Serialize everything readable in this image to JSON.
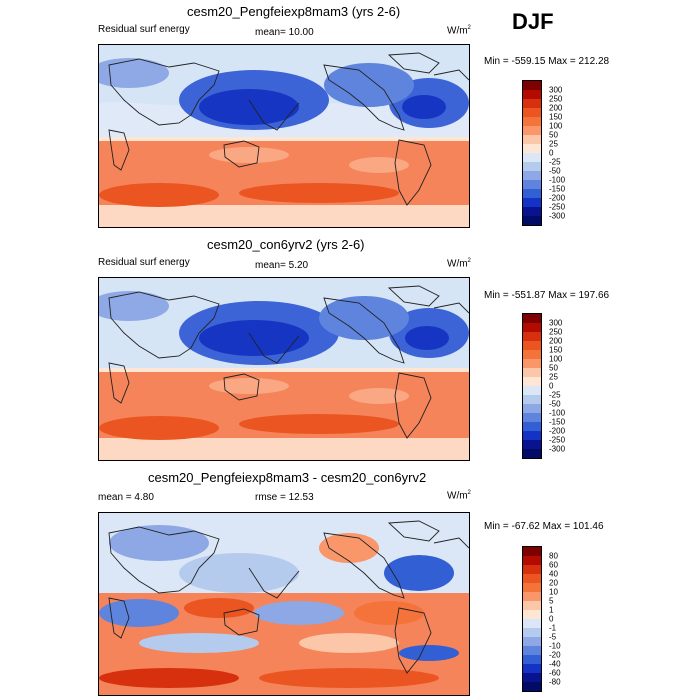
{
  "season": "DJF",
  "panels": [
    {
      "title": "cesm20_Pengfeiexp8mam3 (yrs 2-6)",
      "left_label": "Residual surf energy",
      "mid_label": "mean=  10.00",
      "units": "W/m",
      "units_sup": "2",
      "range": "Min = -559.15 Max = 212.28",
      "levels": [
        "300",
        "250",
        "200",
        "150",
        "100",
        "50",
        "25",
        "0",
        "-25",
        "-50",
        "-100",
        "-150",
        "-200",
        "-250",
        "-300"
      ],
      "colors": [
        "#7f0000",
        "#b40b00",
        "#d7300f",
        "#ea5522",
        "#f4733b",
        "#f9966a",
        "#fcc7a8",
        "#fde6d4",
        "#dbe7f6",
        "#b5cbee",
        "#8ea8e6",
        "#5f84de",
        "#3260d4",
        "#1433c4",
        "#0a138f",
        "#020b66"
      ]
    },
    {
      "title": "cesm20_con6yrv2 (yrs 2-6)",
      "left_label": "Residual surf energy",
      "mid_label": "mean=   5.20",
      "units": "W/m",
      "units_sup": "2",
      "range": "Min = -551.87 Max = 197.66",
      "levels": [
        "300",
        "250",
        "200",
        "150",
        "100",
        "50",
        "25",
        "0",
        "-25",
        "-50",
        "-100",
        "-150",
        "-200",
        "-250",
        "-300"
      ],
      "colors": [
        "#7f0000",
        "#b40b00",
        "#d7300f",
        "#ea5522",
        "#f4733b",
        "#f9966a",
        "#fcc7a8",
        "#fde6d4",
        "#dbe7f6",
        "#b5cbee",
        "#8ea8e6",
        "#5f84de",
        "#3260d4",
        "#1433c4",
        "#0a138f",
        "#020b66"
      ]
    },
    {
      "title": "cesm20_Pengfeiexp8mam3 - cesm20_con6yrv2",
      "left_label": "mean =   4.80",
      "mid_label": "rmse =  12.53",
      "units": "W/m",
      "units_sup": "2",
      "range": "Min = -67.62 Max = 101.46",
      "levels": [
        "80",
        "60",
        "40",
        "20",
        "10",
        "5",
        "1",
        "0",
        "-1",
        "-5",
        "-10",
        "-20",
        "-40",
        "-60",
        "-80"
      ],
      "colors": [
        "#7f0000",
        "#b40b00",
        "#d7300f",
        "#ea5522",
        "#f4733b",
        "#f9966a",
        "#fcc7a8",
        "#fde6d4",
        "#dbe7f6",
        "#b5cbee",
        "#8ea8e6",
        "#5f84de",
        "#3260d4",
        "#1433c4",
        "#0a138f",
        "#020b66"
      ]
    }
  ]
}
